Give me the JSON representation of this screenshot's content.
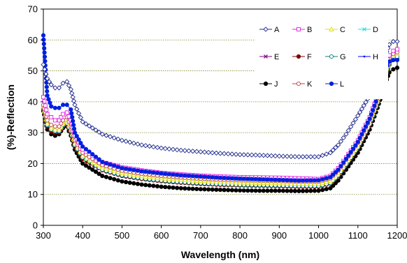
{
  "chart_data": {
    "type": "line",
    "title": "",
    "xlabel": "Wavelength (nm)",
    "ylabel": "(%)-Reflection",
    "xlim": [
      300,
      1200
    ],
    "ylim": [
      0,
      70
    ],
    "xticks": [
      300,
      400,
      500,
      600,
      700,
      800,
      900,
      1000,
      1100,
      1200
    ],
    "yticks": [
      0,
      10,
      20,
      30,
      40,
      50,
      60,
      70
    ],
    "grid": "horizontal dotted",
    "legend_position": "top-right",
    "x": [
      300,
      310,
      320,
      330,
      340,
      350,
      360,
      370,
      380,
      400,
      450,
      500,
      550,
      600,
      650,
      700,
      750,
      800,
      850,
      900,
      950,
      1000,
      1030,
      1050,
      1070,
      1100,
      1130,
      1150,
      1170,
      1180,
      1190,
      1200
    ],
    "series": [
      {
        "name": "A",
        "color": "#1f2a8a",
        "marker": "open-diamond",
        "values": [
          52,
          47.5,
          45.5,
          44.5,
          44.5,
          46,
          46.5,
          44,
          39,
          33.5,
          29.5,
          27.5,
          26,
          25,
          24.3,
          23.8,
          23.3,
          22.9,
          22.7,
          22.4,
          22.2,
          22.2,
          23.5,
          26,
          29.5,
          35.5,
          42,
          48,
          55,
          58.5,
          59.5,
          59.5
        ]
      },
      {
        "name": "B",
        "color": "#e020e0",
        "marker": "open-square",
        "values": [
          41.5,
          36,
          35,
          34,
          34,
          36,
          36.5,
          34,
          29,
          24.5,
          20.5,
          18.8,
          17.8,
          17,
          16.5,
          16.1,
          15.8,
          15.6,
          15.5,
          15.4,
          15.2,
          15,
          16,
          18.5,
          22,
          27.5,
          35,
          42,
          51,
          55,
          56.5,
          57
        ]
      },
      {
        "name": "C",
        "color": "#e0e000",
        "marker": "open-triangle",
        "values": [
          38.5,
          33,
          31.5,
          31,
          31,
          33,
          33.5,
          31,
          26.5,
          22.5,
          18.8,
          17,
          16,
          15.3,
          14.8,
          14.4,
          14.1,
          13.9,
          13.8,
          13.7,
          13.5,
          13.5,
          14.5,
          17,
          20.5,
          26,
          33.5,
          40.5,
          49.5,
          53.5,
          55,
          55.5
        ]
      },
      {
        "name": "D",
        "color": "#20e0e0",
        "marker": "x",
        "values": [
          38,
          32.5,
          31,
          30.5,
          30.5,
          32.5,
          33,
          30.5,
          26,
          22,
          18.3,
          16.5,
          15.5,
          14.8,
          14.3,
          13.9,
          13.6,
          13.4,
          13.3,
          13.2,
          13,
          13,
          14,
          16.5,
          20,
          25.5,
          33,
          40,
          49,
          53,
          54.5,
          55
        ]
      },
      {
        "name": "E",
        "color": "#800080",
        "marker": "x",
        "values": [
          38,
          32.5,
          31,
          30.5,
          30.5,
          32.5,
          33,
          30.5,
          26,
          22,
          18.2,
          16.4,
          15.4,
          14.7,
          14.2,
          13.8,
          13.5,
          13.3,
          13.2,
          13.1,
          12.9,
          12.9,
          13.9,
          16.3,
          19.8,
          25.3,
          32.8,
          39.8,
          48.8,
          52.8,
          54.3,
          54.8
        ]
      },
      {
        "name": "F",
        "color": "#800000",
        "marker": "filled-circle",
        "values": [
          37.5,
          32,
          30.5,
          30,
          30,
          32,
          32.5,
          30,
          25.5,
          21.5,
          17.8,
          16,
          15,
          14.3,
          13.8,
          13.4,
          13.1,
          12.9,
          12.8,
          12.7,
          12.5,
          12.5,
          13.5,
          16,
          19.5,
          25,
          32.5,
          39.5,
          48,
          52,
          53.5,
          54
        ]
      },
      {
        "name": "G",
        "color": "#008080",
        "marker": "open-circle",
        "values": [
          38,
          32.5,
          31,
          30.5,
          30.5,
          32.5,
          33,
          30.5,
          26,
          22,
          18,
          16.2,
          15.2,
          14.5,
          14,
          13.6,
          13.3,
          13.1,
          13,
          12.9,
          12.7,
          12.7,
          13.7,
          16.2,
          19.7,
          25.2,
          32.7,
          39.7,
          48.5,
          52.5,
          54,
          54.5
        ]
      },
      {
        "name": "H",
        "color": "#0000ff",
        "marker": "dot",
        "values": [
          37.5,
          32,
          30.5,
          30,
          30,
          32,
          32.5,
          30,
          25.5,
          21.5,
          17.6,
          15.8,
          14.8,
          14.1,
          13.6,
          13.2,
          12.9,
          12.7,
          12.6,
          12.5,
          12.3,
          12.3,
          13.3,
          15.8,
          19.3,
          24.8,
          32.3,
          39.3,
          48,
          52,
          53.3,
          53.5
        ]
      },
      {
        "name": "J",
        "color": "#000000",
        "marker": "filled-circle",
        "values": [
          37,
          31,
          29.5,
          29,
          29.5,
          31.5,
          32,
          29,
          24.5,
          20,
          16,
          14.2,
          13.2,
          12.5,
          12,
          11.7,
          11.5,
          11.3,
          11.2,
          11.2,
          11.1,
          11.2,
          12,
          14.5,
          18,
          23.5,
          31,
          38,
          46,
          49.5,
          50.5,
          51
        ]
      },
      {
        "name": "K",
        "color": "#c04040",
        "marker": "open-circle",
        "values": [
          39,
          34,
          32.5,
          32,
          32,
          34,
          35,
          32,
          27.5,
          23.5,
          19.5,
          17.7,
          16.7,
          16,
          15.5,
          15.1,
          14.8,
          14.6,
          14.5,
          14.4,
          14.2,
          14.2,
          15.2,
          17.7,
          21.2,
          26.7,
          34.2,
          41.2,
          50,
          54,
          55.5,
          56
        ]
      },
      {
        "name": "L",
        "color": "#0020e0",
        "marker": "filled-circle",
        "values": [
          61.5,
          42,
          38.5,
          38,
          38,
          39,
          39,
          37.5,
          30,
          25.5,
          20.5,
          18.5,
          17.5,
          16.8,
          16.2,
          15.8,
          15.4,
          15.1,
          14.9,
          14.7,
          14.5,
          14.6,
          15.6,
          18,
          21.5,
          27,
          34.5,
          41.5,
          50.5,
          53,
          53.5,
          53.5
        ]
      }
    ]
  }
}
